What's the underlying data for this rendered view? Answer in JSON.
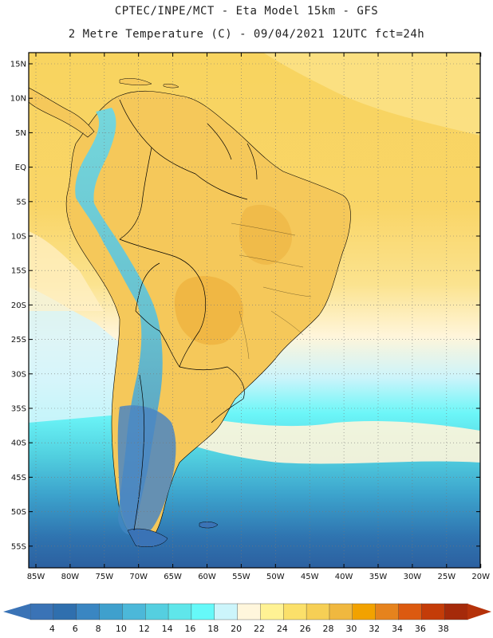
{
  "header": {
    "title_line1": "CPTEC/INPE/MCT -  Eta Model 15km - GFS",
    "title_line2": "2 Metre Temperature (C) - 09/04/2021 12UTC fct=24h"
  },
  "map": {
    "lat_ticks": [
      "15N",
      "10N",
      "5N",
      "EQ",
      "5S",
      "10S",
      "15S",
      "20S",
      "25S",
      "30S",
      "35S",
      "40S",
      "45S",
      "50S",
      "55S"
    ],
    "lon_ticks": [
      "85W",
      "80W",
      "75W",
      "70W",
      "65W",
      "60W",
      "55W",
      "50W",
      "45W",
      "40W",
      "35W",
      "30W",
      "25W",
      "20W"
    ]
  },
  "colorbar": {
    "labels": [
      "4",
      "6",
      "8",
      "10",
      "12",
      "14",
      "16",
      "18",
      "20",
      "22",
      "24",
      "26",
      "28",
      "30",
      "32",
      "34",
      "36",
      "38"
    ],
    "colors": [
      "#3a73b6",
      "#2f6fae",
      "#3a86c2",
      "#3fa0cd",
      "#4cb8d9",
      "#55cfe0",
      "#5fe6ea",
      "#66f9f9",
      "#ccf5fb",
      "#fff6dc",
      "#fff294",
      "#fbe06a",
      "#f6cf55",
      "#f0b83f",
      "#f2a200",
      "#e6831d",
      "#dc5a10",
      "#c43c08",
      "#a52a0a"
    ],
    "left_arrow_color": "#3a73b6",
    "right_arrow_color": "#b5320a"
  },
  "palette": {
    "land_warm": "#f6c048",
    "land_mid": "#f4ce5e",
    "ocean_north": "#fbd96f",
    "andes_cool": "#9ae2ef",
    "southern_ocean_cyan": "#56e3ea",
    "southern_ocean_deep": "#2f6aa8",
    "patagonia": "#4b86c2",
    "border": "#000000"
  }
}
